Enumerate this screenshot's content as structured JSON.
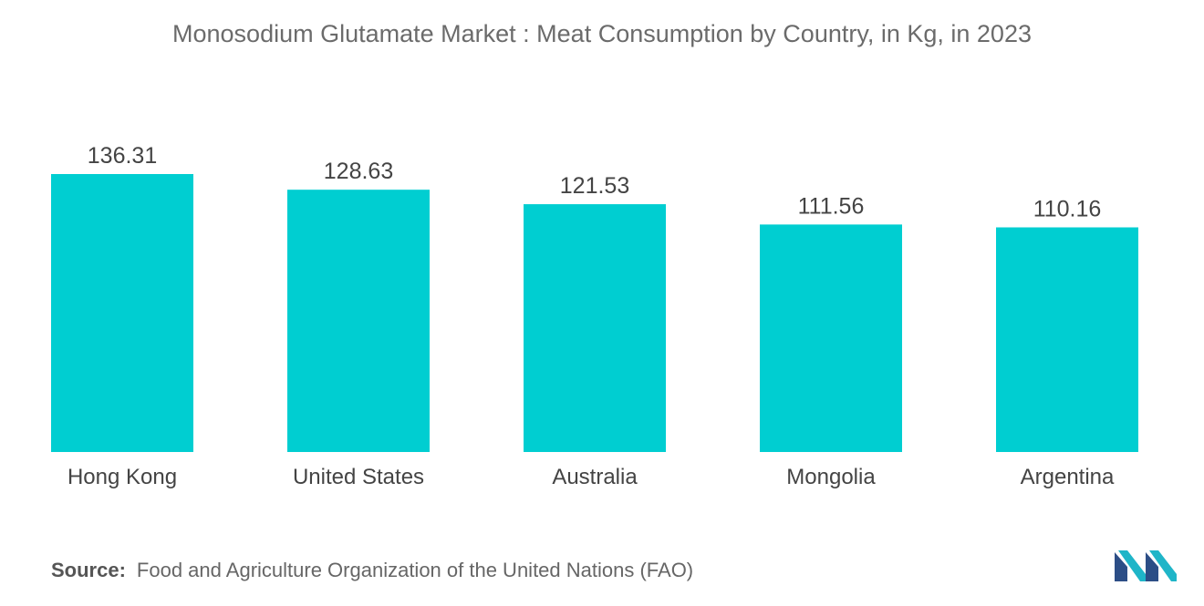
{
  "chart_data": {
    "type": "bar",
    "title": "Monosodium Glutamate Market : Meat Consumption by Country, in Kg, in 2023",
    "categories": [
      "Hong Kong",
      "United States",
      "Australia",
      "Mongolia",
      "Argentina"
    ],
    "values": [
      136.31,
      128.63,
      121.53,
      111.56,
      110.16
    ],
    "value_labels": [
      "136.31",
      "128.63",
      "121.53",
      "111.56",
      "110.16"
    ],
    "xlabel": "",
    "ylabel": "",
    "ylim": [
      0,
      136.31
    ],
    "grid": false,
    "legend": "none",
    "bar_color": "#00CED1"
  },
  "source": {
    "label": "Source:",
    "text": "Food and Agriculture Organization of the United Nations (FAO)"
  },
  "logo": {
    "icon": "mordor-intelligence-logo",
    "colors": [
      "#2C4E86",
      "#1FB5C8"
    ]
  }
}
